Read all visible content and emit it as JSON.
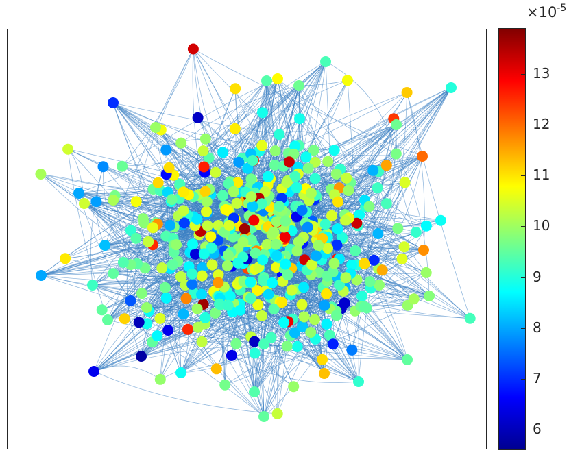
{
  "chart_data": {
    "type": "scatter",
    "subtype": "network-graph",
    "title": "",
    "xlabel": "",
    "ylabel": "",
    "edges_color": "#3a7fc2",
    "colormap": "jet",
    "colorbar": {
      "range": [
        5.6,
        13.9
      ],
      "ticks": [
        6,
        7,
        8,
        9,
        10,
        11,
        12,
        13
      ],
      "exponent_label": "×10",
      "exponent_power": "-5",
      "placement": "right"
    },
    "grid": false,
    "legend": "none"
  }
}
